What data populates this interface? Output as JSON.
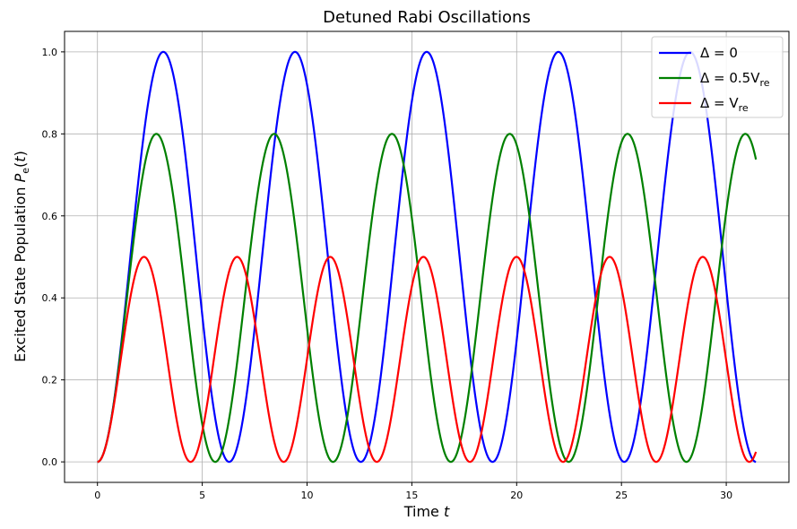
{
  "chart_data": {
    "type": "line",
    "title": "Detuned Rabi Oscillations",
    "xlabel": "Time t",
    "ylabel": "Excited State Population P_e(t)",
    "xlim": [
      -1.57,
      32.99
    ],
    "ylim": [
      -0.05,
      1.05
    ],
    "xticks": [
      0,
      5,
      10,
      15,
      20,
      25,
      30
    ],
    "yticks": [
      0.0,
      0.2,
      0.4,
      0.6,
      0.8,
      1.0
    ],
    "x_tick_labels": [
      "0",
      "5",
      "10",
      "15",
      "20",
      "25",
      "30"
    ],
    "y_tick_labels": [
      "0.0",
      "0.2",
      "0.4",
      "0.6",
      "0.8",
      "1.0"
    ],
    "grid": true,
    "legend_position": "top-right",
    "x_range": [
      0,
      31.4159
    ],
    "series": [
      {
        "legend_main": "Δ = 0",
        "legend_sub": "",
        "color": "#0000ff",
        "amplitude": 1.0,
        "period": 6.2832,
        "x_at_first_peak": 1.5708
      },
      {
        "legend_main": "Δ = 0.5V",
        "legend_sub": "re",
        "color": "#008000",
        "amplitude": 0.8,
        "period": 5.6199,
        "x_at_first_peak": 1.405
      },
      {
        "legend_main": "Δ = V",
        "legend_sub": "re",
        "color": "#ff0000",
        "amplitude": 0.5,
        "period": 4.4429,
        "x_at_first_peak": 1.1107
      }
    ]
  }
}
